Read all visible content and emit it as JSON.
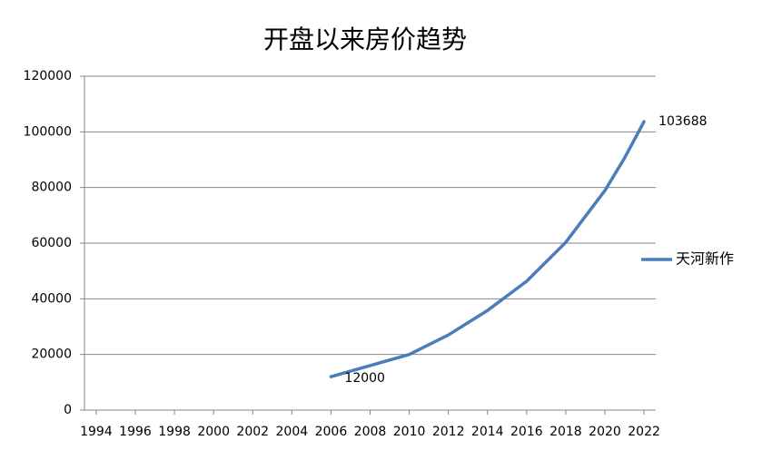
{
  "chart_data": {
    "type": "line",
    "title": "开盘以来房价趋势",
    "x": [
      2006,
      2008,
      2010,
      2012,
      2014,
      2016,
      2018,
      2020,
      2021,
      2022
    ],
    "series": [
      {
        "name": "天河新作",
        "color": "#4a7ebb",
        "values": [
          12000,
          16000,
          20000,
          27000,
          35800,
          46300,
          60300,
          78900,
          90500,
          103688
        ]
      }
    ],
    "xlim": [
      1993.4,
      2022.6
    ],
    "xticks": [
      1994,
      1996,
      1998,
      2000,
      2002,
      2004,
      2006,
      2008,
      2010,
      2012,
      2014,
      2016,
      2018,
      2020,
      2022
    ],
    "ylim": [
      0,
      120000
    ],
    "yticks": [
      0,
      20000,
      40000,
      60000,
      80000,
      100000,
      120000
    ],
    "grid": true,
    "legend": "right"
  }
}
